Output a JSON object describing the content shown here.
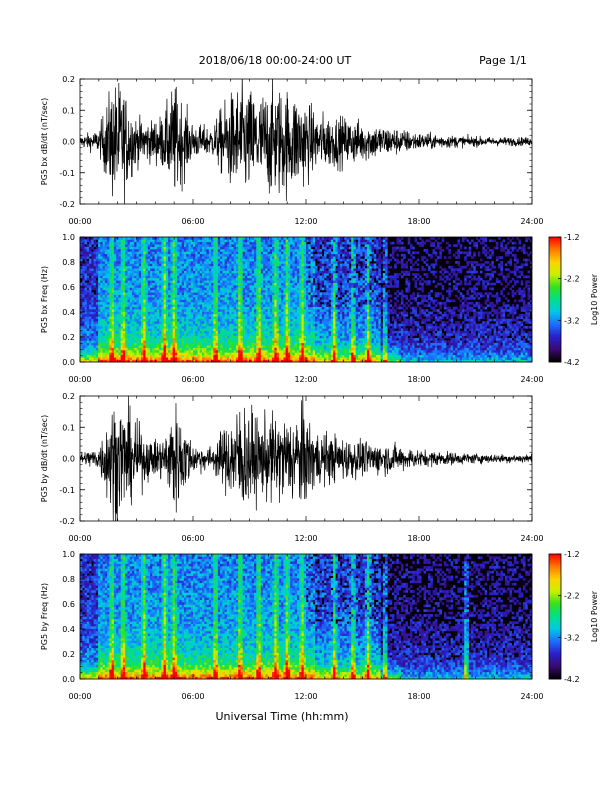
{
  "header": {
    "date_range": "2018/06/18  00:00-24:00 UT",
    "page": "Page 1/1"
  },
  "footer": {
    "xlabel": "Universal Time (hh:mm)"
  },
  "colorbar": {
    "label": "Log10 Power",
    "ticks": [
      "-1.2",
      "-2.2",
      "-3.2",
      "-4.2"
    ],
    "range": [
      -4.2,
      -1.2
    ],
    "colors": [
      "#000000",
      "#3a0a6e",
      "#2a1fc8",
      "#1e6cff",
      "#00c8e6",
      "#00e08a",
      "#34e020",
      "#c8f000",
      "#ffd200",
      "#ff7800",
      "#ff0000"
    ]
  },
  "chart_data": [
    {
      "type": "line",
      "title": "",
      "xlabel": "",
      "ylabel": "PG5 bx dB/dt (nT/sec)",
      "xlim": [
        "00:00",
        "24:00"
      ],
      "xticks": [
        "00:00",
        "06:00",
        "12:00",
        "18:00",
        "24:00"
      ],
      "ylim": [
        -0.2,
        0.2
      ],
      "yticks": [
        "0.2",
        "0.1",
        "0.0",
        "-0.1",
        "-0.2"
      ],
      "x_hours": [
        0,
        1,
        1.7,
        2.2,
        3,
        3.8,
        4.5,
        5,
        6,
        7,
        7.8,
        8.6,
        9.5,
        10.3,
        11,
        11.8,
        12.5,
        13.5,
        15,
        16.5,
        18,
        20,
        22,
        24
      ],
      "amplitude": [
        0.02,
        0.04,
        0.2,
        0.2,
        0.08,
        0.07,
        0.1,
        0.2,
        0.06,
        0.05,
        0.15,
        0.2,
        0.16,
        0.2,
        0.18,
        0.16,
        0.1,
        0.09,
        0.07,
        0.05,
        0.03,
        0.02,
        0.015,
        0.015
      ]
    },
    {
      "type": "heatmap",
      "title": "",
      "xlabel": "",
      "ylabel": "PG5 bx Freq (Hz)",
      "xlim": [
        "00:00",
        "24:00"
      ],
      "xticks": [
        "00:00",
        "06:00",
        "12:00",
        "18:00",
        "24:00"
      ],
      "ylim": [
        0.0,
        1.0
      ],
      "yticks": [
        "1.0",
        "0.8",
        "0.6",
        "0.4",
        "0.2",
        "0.0"
      ],
      "value_range": [
        -4.2,
        -1.2
      ],
      "bursts_hours": [
        1.7,
        2.3,
        3.4,
        4.5,
        5.0,
        7.2,
        8.5,
        9.5,
        10.4,
        11.0,
        11.8,
        13.5,
        14.5,
        15.3,
        16.2
      ]
    },
    {
      "type": "line",
      "title": "",
      "xlabel": "",
      "ylabel": "PG5 by dB/dt (nT/sec)",
      "xlim": [
        "00:00",
        "24:00"
      ],
      "xticks": [
        "00:00",
        "06:00",
        "12:00",
        "18:00",
        "24:00"
      ],
      "ylim": [
        -0.2,
        0.2
      ],
      "yticks": [
        "0.2",
        "0.1",
        "0.0",
        "-0.1",
        "-0.2"
      ],
      "x_hours": [
        0,
        1,
        1.7,
        2.2,
        3,
        3.8,
        4.5,
        5,
        6,
        7,
        7.8,
        8.6,
        9.5,
        10.3,
        11,
        11.8,
        12.5,
        13.5,
        15,
        16.5,
        18,
        20,
        22,
        24
      ],
      "amplitude": [
        0.02,
        0.04,
        0.2,
        0.2,
        0.12,
        0.06,
        0.08,
        0.2,
        0.05,
        0.04,
        0.12,
        0.2,
        0.13,
        0.15,
        0.14,
        0.18,
        0.1,
        0.08,
        0.06,
        0.05,
        0.03,
        0.02,
        0.015,
        0.015
      ]
    },
    {
      "type": "heatmap",
      "title": "",
      "xlabel": "",
      "ylabel": "PG5 by Freq (Hz)",
      "xlim": [
        "00:00",
        "24:00"
      ],
      "xticks": [
        "00:00",
        "06:00",
        "12:00",
        "18:00",
        "24:00"
      ],
      "ylim": [
        0.0,
        1.0
      ],
      "yticks": [
        "1.0",
        "0.8",
        "0.6",
        "0.4",
        "0.2",
        "0.0"
      ],
      "value_range": [
        -4.2,
        -1.2
      ],
      "bursts_hours": [
        1.7,
        2.3,
        3.4,
        4.5,
        5.0,
        7.2,
        8.5,
        9.5,
        10.4,
        11.0,
        11.8,
        13.5,
        14.5,
        15.3,
        16.2,
        20.5
      ]
    }
  ]
}
